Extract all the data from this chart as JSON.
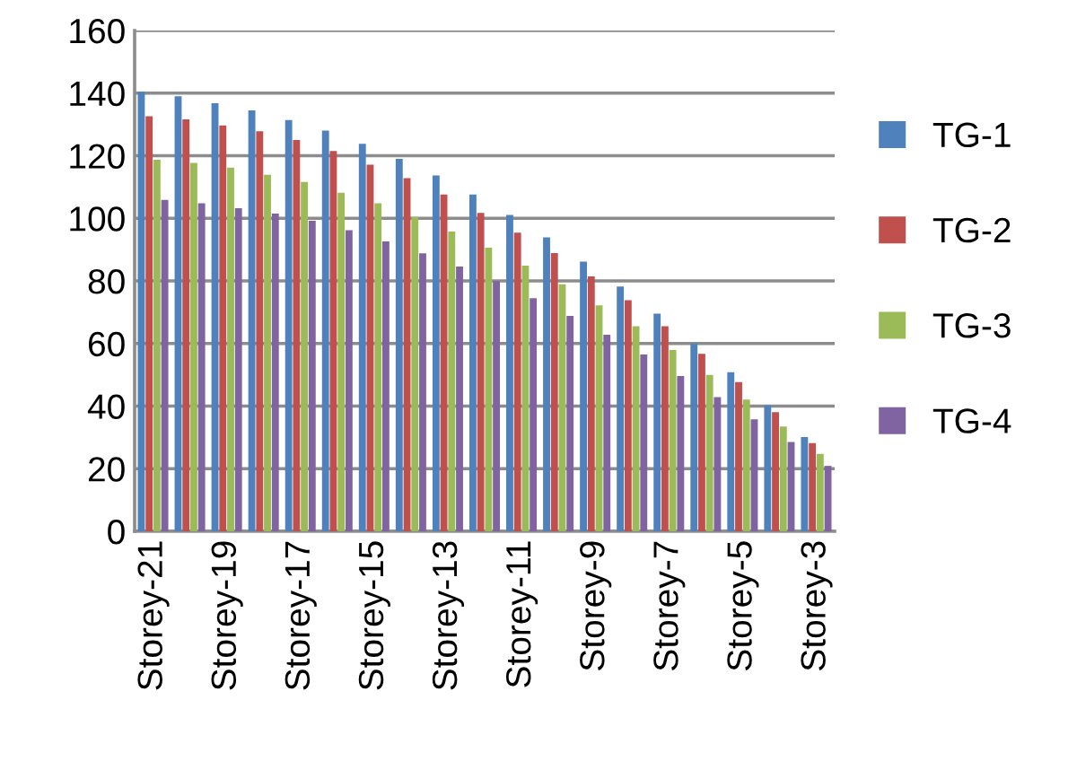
{
  "chart_data": {
    "type": "bar",
    "categories": [
      "Storey-21",
      null,
      "Storey-19",
      null,
      "Storey-17",
      null,
      "Storey-15",
      null,
      "Storey-13",
      null,
      "Storey-11",
      null,
      "Storey-9",
      null,
      "Storey-7",
      null,
      "Storey-5",
      null,
      "Storey-3"
    ],
    "series": [
      {
        "name": "TG-1",
        "color": "#4f81bd",
        "values": [
          140.4,
          139,
          136.8,
          134.5,
          131.4,
          128,
          123.8,
          119,
          113.7,
          107.6,
          101.1,
          93.9,
          86.2,
          78.2,
          69.5,
          60,
          50.8,
          40.2,
          30.1
        ]
      },
      {
        "name": "TG-2",
        "color": "#c0504d",
        "values": [
          132.6,
          131.6,
          129.7,
          127.8,
          125,
          121.5,
          117.1,
          112.8,
          107.6,
          101.7,
          95.4,
          88.9,
          81.4,
          73.8,
          65.5,
          56.7,
          47.7,
          38.1,
          28.2
        ]
      },
      {
        "name": "TG-3",
        "color": "#9bbb59",
        "values": [
          118.7,
          117.7,
          116.2,
          113.9,
          111.6,
          108.2,
          104.8,
          100.4,
          95.8,
          90.6,
          84.9,
          78.9,
          72.2,
          65.5,
          57.9,
          50,
          42.1,
          33.5,
          24.7
        ]
      },
      {
        "name": "TG-4",
        "color": "#8064a2",
        "values": [
          105.9,
          104.8,
          103.2,
          101.5,
          99.2,
          96.2,
          92.6,
          88.8,
          84.6,
          79.9,
          74.5,
          68.8,
          62.8,
          56.5,
          49.6,
          42.9,
          35.8,
          28.5,
          20.9
        ]
      }
    ],
    "ylim": [
      0,
      160
    ],
    "yticks": [
      0,
      20,
      40,
      60,
      80,
      100,
      120,
      140,
      160
    ],
    "grid": "y",
    "legend": "right"
  }
}
